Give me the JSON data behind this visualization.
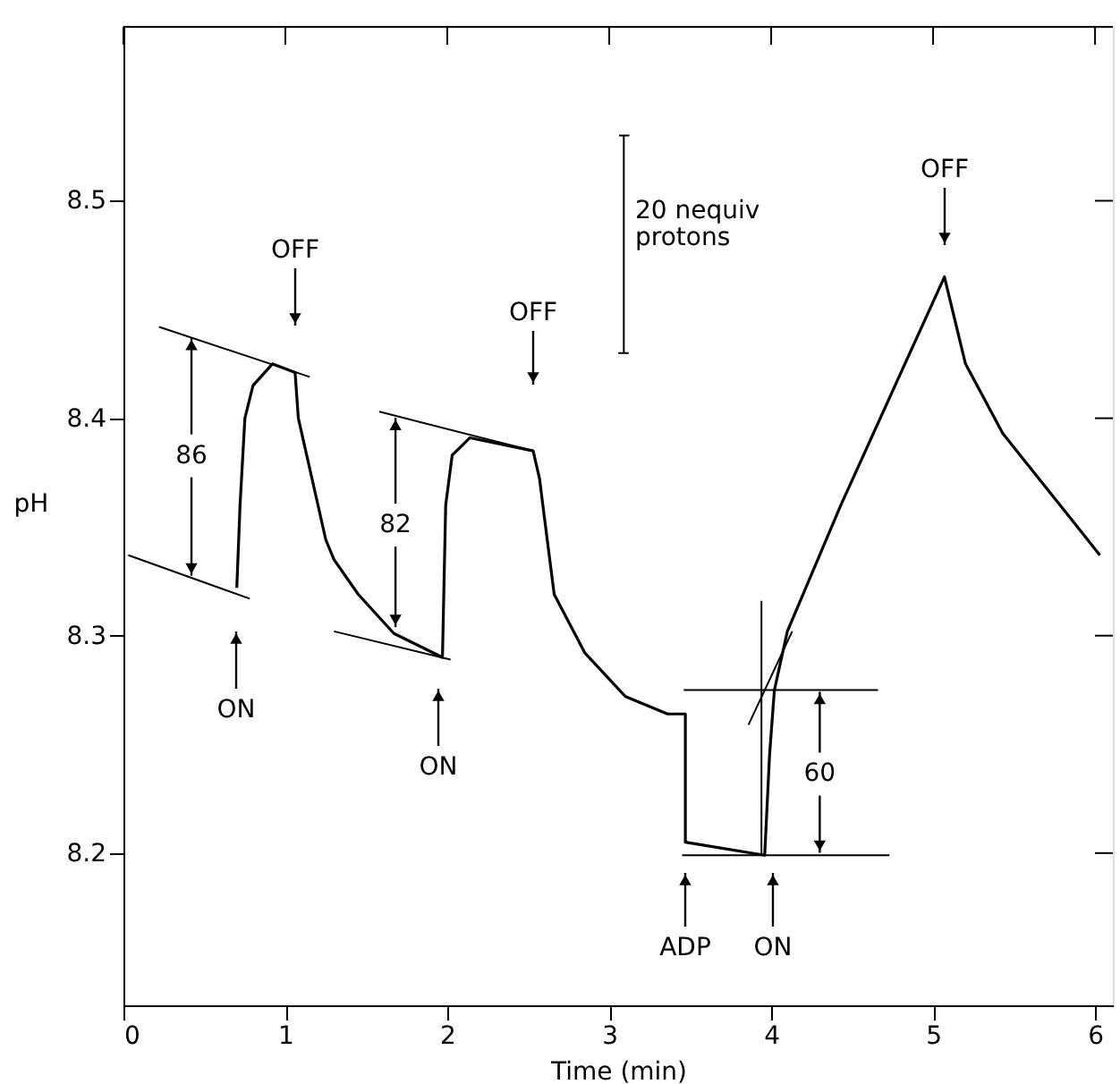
{
  "chart_data": {
    "type": "line",
    "xlabel": "Time (min)",
    "ylabel": "pH",
    "xlim": [
      0,
      6.11
    ],
    "ylim": [
      8.13,
      8.58
    ],
    "xticks": [
      0,
      1,
      2,
      3,
      4,
      5,
      6
    ],
    "yticks": [
      8.2,
      8.3,
      8.4,
      8.5
    ],
    "grid": false,
    "marker": "none",
    "line_style": "solid",
    "series": [
      {
        "color": "#000000",
        "x": [
          0.7,
          0.72,
          0.75,
          0.8,
          0.92,
          1.06,
          1.08,
          1.25,
          1.3,
          1.45,
          1.67,
          1.97,
          1.99,
          2.03,
          2.14,
          2.53,
          2.57,
          2.59,
          2.66,
          2.85,
          3.1,
          3.36,
          3.47,
          3.47,
          3.96,
          3.99,
          4.02,
          4.1,
          4.43,
          5.07,
          5.2,
          5.43,
          5.87,
          6.03
        ],
        "values": [
          8.322,
          8.36,
          8.4,
          8.415,
          8.425,
          8.421,
          8.4,
          8.344,
          8.335,
          8.319,
          8.301,
          8.29,
          8.36,
          8.383,
          8.391,
          8.385,
          8.372,
          8.36,
          8.319,
          8.292,
          8.272,
          8.264,
          8.264,
          8.205,
          8.199,
          8.245,
          8.275,
          8.302,
          8.36,
          8.465,
          8.425,
          8.393,
          8.352,
          8.337
        ]
      },
      {
        "color": "#000000",
        "x": [
          0.03,
          0.78
        ],
        "values": [
          8.337,
          8.317
        ]
      },
      {
        "color": "#000000",
        "x": [
          0.22,
          1.15
        ],
        "values": [
          8.442,
          8.419
        ]
      },
      {
        "color": "#000000",
        "x": [
          1.3,
          2.02
        ],
        "values": [
          8.302,
          8.289
        ]
      },
      {
        "color": "#000000",
        "x": [
          1.58,
          2.53
        ],
        "values": [
          8.403,
          8.385
        ]
      },
      {
        "color": "#000000",
        "x": [
          3.46,
          4.66
        ],
        "values": [
          8.275,
          8.275
        ]
      },
      {
        "color": "#000000",
        "x": [
          3.45,
          4.73
        ],
        "values": [
          8.199,
          8.199
        ]
      },
      {
        "color": "#000000",
        "x": [
          3.94,
          3.94
        ],
        "values": [
          8.316,
          8.199
        ]
      },
      {
        "color": "#000000",
        "x": [
          3.86,
          4.13
        ],
        "values": [
          8.259,
          8.302
        ]
      },
      {
        "color": "#000000",
        "x": [
          3.06,
          3.12,
          3.09,
          3.09,
          3.06,
          3.12
        ],
        "values": [
          8.53,
          8.53,
          8.53,
          8.43,
          8.43,
          8.43
        ]
      }
    ],
    "annotations": [
      "OFF",
      "OFF",
      "OFF",
      "ON",
      "ON",
      "ADP",
      "ON",
      {
        "text": "86",
        "x": 0.42,
        "y": 8.437
      },
      {
        "text": "82",
        "x": 1.68,
        "y": 8.401
      },
      {
        "text": "60",
        "x": 4.3,
        "y": 8.275
      },
      "20 nequiv\nprotons"
    ]
  }
}
